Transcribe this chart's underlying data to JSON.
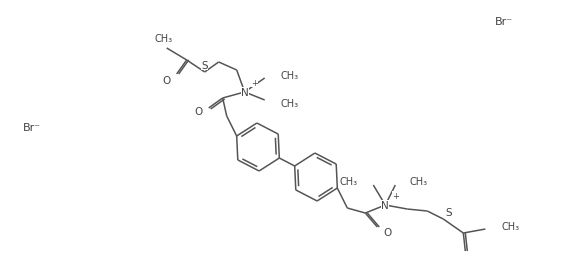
{
  "bg_color": "#ffffff",
  "line_color": "#555555",
  "text_color": "#444444",
  "line_width": 1.1,
  "figsize": [
    5.64,
    2.55
  ],
  "dpi": 100,
  "br1": [
    18,
    128
  ],
  "br2": [
    490,
    22
  ]
}
